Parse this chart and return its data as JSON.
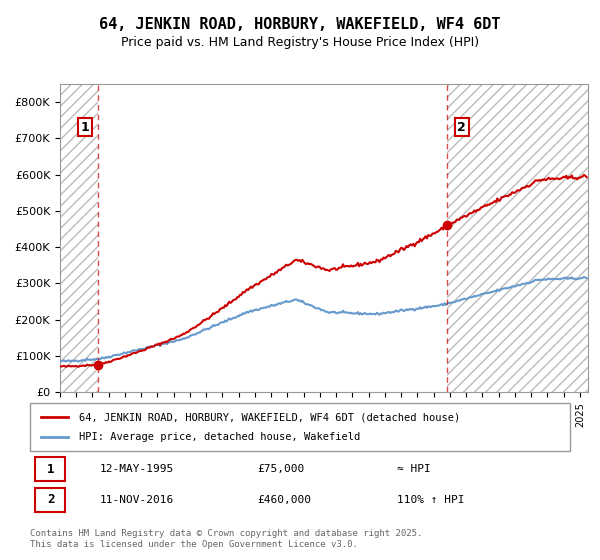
{
  "title_line1": "64, JENKIN ROAD, HORBURY, WAKEFIELD, WF4 6DT",
  "title_line2": "Price paid vs. HM Land Registry's House Price Index (HPI)",
  "sale1_date": "1995-05-12",
  "sale1_price": 75000,
  "sale1_label": "1",
  "sale2_date": "2016-11-11",
  "sale2_price": 460000,
  "sale2_label": "2",
  "property_color": "#cc0000",
  "hpi_color": "#6699cc",
  "hpi_line_color": "#5588bb",
  "annotation1_text": "1",
  "annotation2_text": "2",
  "legend_property": "64, JENKIN ROAD, HORBURY, WAKEFIELD, WF4 6DT (detached house)",
  "legend_hpi": "HPI: Average price, detached house, Wakefield",
  "table_row1": [
    "1",
    "12-MAY-1995",
    "£75,000",
    "≈ HPI"
  ],
  "table_row2": [
    "2",
    "11-NOV-2016",
    "£460,000",
    "110% ↑ HPI"
  ],
  "footnote": "Contains HM Land Registry data © Crown copyright and database right 2025.\nThis data is licensed under the Open Government Licence v3.0.",
  "ylim": [
    0,
    850000
  ],
  "yticks": [
    0,
    100000,
    200000,
    300000,
    400000,
    500000,
    600000,
    700000,
    800000
  ],
  "background_color": "#ffffff",
  "hatch_color": "#cccccc"
}
